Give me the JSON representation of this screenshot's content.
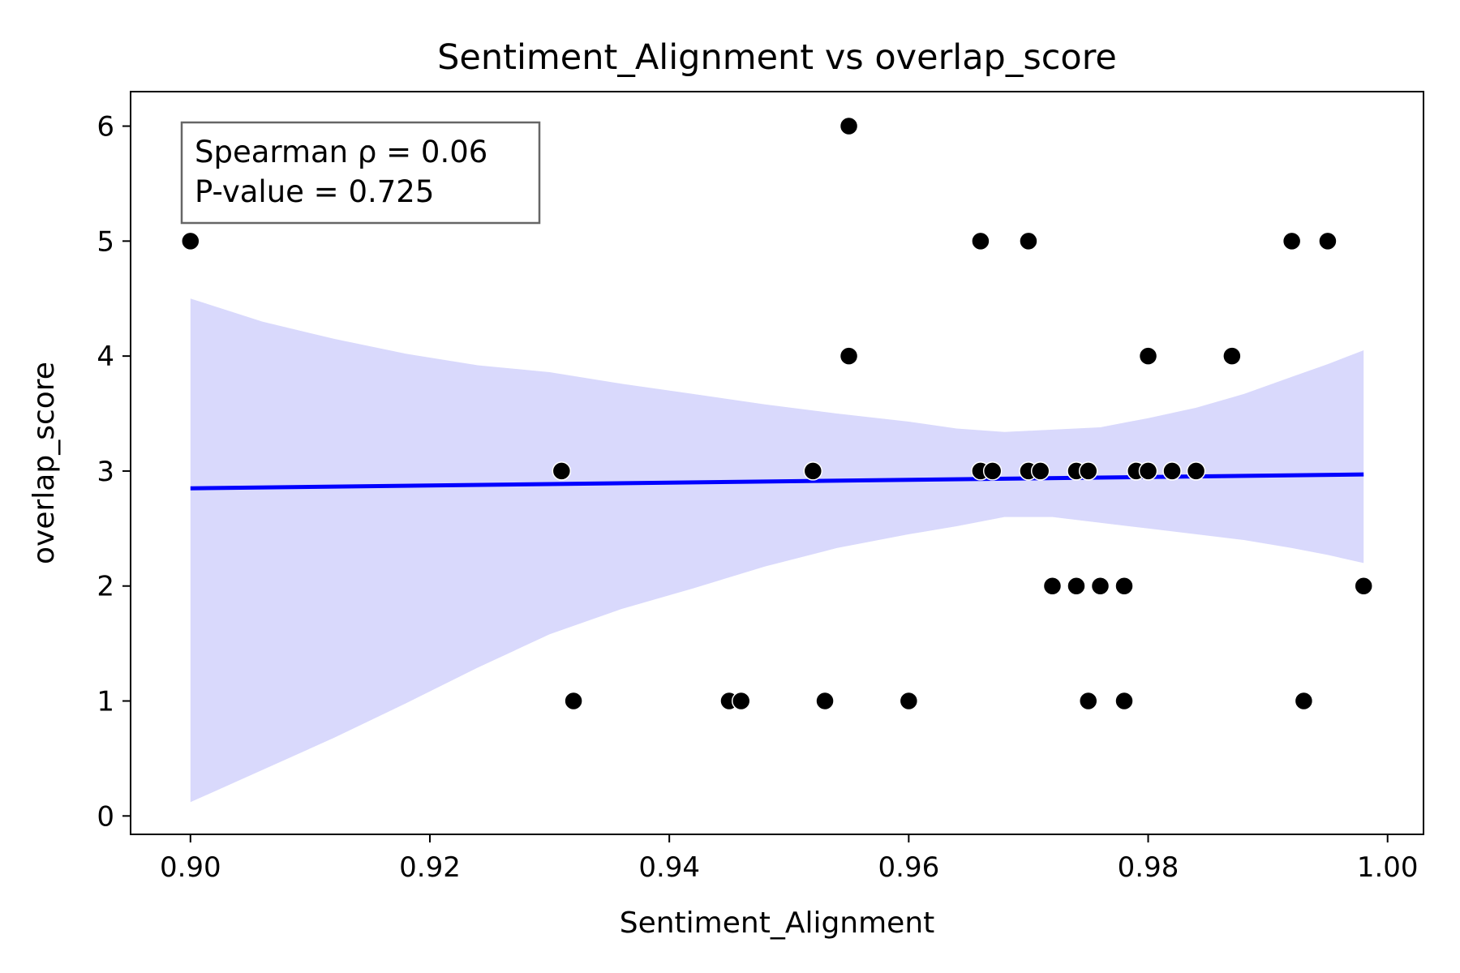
{
  "chart_data": {
    "type": "scatter",
    "title": "Sentiment_Alignment vs overlap_score",
    "xlabel": "Sentiment_Alignment",
    "ylabel": "overlap_score",
    "xlim": [
      0.895,
      1.003
    ],
    "ylim": [
      -0.16,
      6.3
    ],
    "xticks": [
      "0.90",
      "0.92",
      "0.94",
      "0.96",
      "0.98",
      "1.00"
    ],
    "yticks": [
      "0",
      "1",
      "2",
      "3",
      "4",
      "5",
      "6"
    ],
    "grid": false,
    "annotation": {
      "lines": [
        "Spearman ρ = 0.06",
        "P-value = 0.725"
      ],
      "placement": "top-left"
    },
    "points": [
      {
        "x": 0.9,
        "y": 5
      },
      {
        "x": 0.931,
        "y": 3
      },
      {
        "x": 0.932,
        "y": 1
      },
      {
        "x": 0.945,
        "y": 1
      },
      {
        "x": 0.946,
        "y": 1
      },
      {
        "x": 0.952,
        "y": 3
      },
      {
        "x": 0.953,
        "y": 1
      },
      {
        "x": 0.955,
        "y": 6
      },
      {
        "x": 0.955,
        "y": 4
      },
      {
        "x": 0.96,
        "y": 1
      },
      {
        "x": 0.966,
        "y": 5
      },
      {
        "x": 0.966,
        "y": 3
      },
      {
        "x": 0.967,
        "y": 3
      },
      {
        "x": 0.97,
        "y": 5
      },
      {
        "x": 0.97,
        "y": 3
      },
      {
        "x": 0.971,
        "y": 3
      },
      {
        "x": 0.972,
        "y": 2
      },
      {
        "x": 0.974,
        "y": 3
      },
      {
        "x": 0.974,
        "y": 2
      },
      {
        "x": 0.975,
        "y": 3
      },
      {
        "x": 0.975,
        "y": 1
      },
      {
        "x": 0.976,
        "y": 2
      },
      {
        "x": 0.978,
        "y": 2
      },
      {
        "x": 0.978,
        "y": 1
      },
      {
        "x": 0.979,
        "y": 3
      },
      {
        "x": 0.98,
        "y": 3
      },
      {
        "x": 0.98,
        "y": 4
      },
      {
        "x": 0.982,
        "y": 3
      },
      {
        "x": 0.984,
        "y": 3
      },
      {
        "x": 0.987,
        "y": 4
      },
      {
        "x": 0.992,
        "y": 5
      },
      {
        "x": 0.993,
        "y": 1
      },
      {
        "x": 0.995,
        "y": 5
      },
      {
        "x": 0.998,
        "y": 2
      }
    ],
    "regression": {
      "x": [
        0.9,
        0.998
      ],
      "y": [
        2.85,
        2.97
      ],
      "color": "#0000ff"
    },
    "confidence_band": {
      "color": "#d9d9fc",
      "x": [
        0.9,
        0.906,
        0.912,
        0.918,
        0.924,
        0.93,
        0.936,
        0.942,
        0.948,
        0.954,
        0.96,
        0.964,
        0.968,
        0.972,
        0.976,
        0.98,
        0.984,
        0.988,
        0.992,
        0.995,
        0.998
      ],
      "upper": [
        4.5,
        4.3,
        4.15,
        4.02,
        3.92,
        3.86,
        3.76,
        3.67,
        3.58,
        3.5,
        3.43,
        3.37,
        3.34,
        3.36,
        3.38,
        3.46,
        3.55,
        3.67,
        3.82,
        3.93,
        4.05
      ],
      "lower": [
        0.12,
        0.4,
        0.68,
        0.98,
        1.29,
        1.58,
        1.8,
        1.98,
        2.17,
        2.33,
        2.45,
        2.52,
        2.6,
        2.6,
        2.55,
        2.5,
        2.45,
        2.4,
        2.33,
        2.27,
        2.2
      ]
    },
    "marker_color": "#000000"
  }
}
